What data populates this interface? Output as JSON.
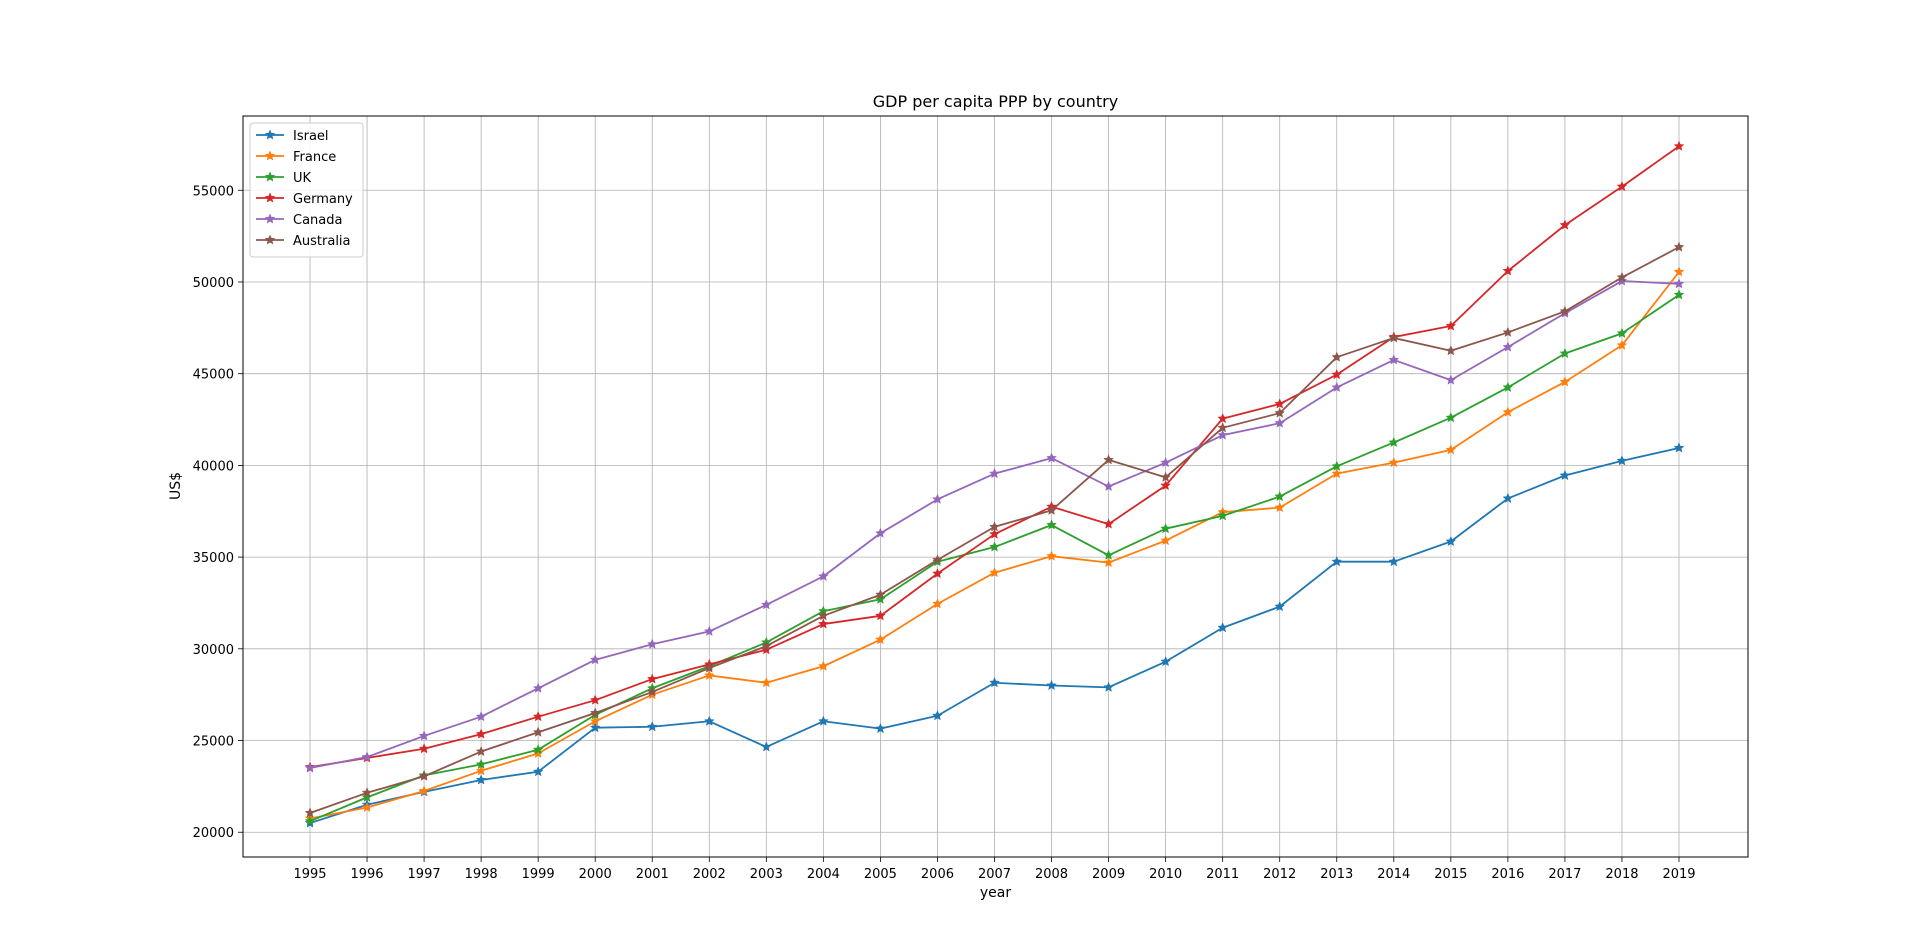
{
  "chart_data": {
    "type": "line",
    "title": "GDP per capita PPP by country",
    "xlabel": "year",
    "ylabel": "US$",
    "x": [
      "1995",
      "1996",
      "1997",
      "1998",
      "1999",
      "2000",
      "2001",
      "2002",
      "2003",
      "2004",
      "2005",
      "2006",
      "2007",
      "2008",
      "2009",
      "2010",
      "2011",
      "2012",
      "2013",
      "2014",
      "2015",
      "2016",
      "2017",
      "2018",
      "2019"
    ],
    "yticks": [
      20000,
      25000,
      30000,
      35000,
      40000,
      45000,
      50000,
      55000
    ],
    "ylim": [
      18650,
      59050
    ],
    "grid": true,
    "legend_position": "top-left",
    "marker": "star",
    "series": [
      {
        "name": "Israel",
        "color": "#1f77b4",
        "values": [
          20500,
          21500,
          22200,
          22850,
          23300,
          25700,
          25750,
          26050,
          24650,
          26050,
          25650,
          26350,
          28150,
          28000,
          27900,
          29300,
          31150,
          32300,
          34750,
          34750,
          35850,
          38200,
          39450,
          40250,
          40950
        ]
      },
      {
        "name": "France",
        "color": "#ff7f0e",
        "values": [
          20750,
          21350,
          22250,
          23350,
          24300,
          26050,
          27500,
          28550,
          28150,
          29050,
          30500,
          32450,
          34150,
          35050,
          34700,
          35900,
          37450,
          37700,
          39550,
          40150,
          40850,
          42900,
          44550,
          46550,
          50550
        ]
      },
      {
        "name": "UK",
        "color": "#2ca02c",
        "values": [
          20600,
          21900,
          23100,
          23700,
          24500,
          26400,
          27850,
          29050,
          30350,
          32050,
          32700,
          34750,
          35550,
          36750,
          35100,
          36550,
          37250,
          38300,
          39950,
          41250,
          42600,
          44250,
          46100,
          47200,
          49300
        ]
      },
      {
        "name": "Germany",
        "color": "#d62728",
        "values": [
          23550,
          24050,
          24550,
          25350,
          26300,
          27200,
          28350,
          29150,
          29950,
          31350,
          31800,
          34100,
          36250,
          37750,
          36800,
          38900,
          42550,
          43350,
          44950,
          47000,
          47600,
          50600,
          53100,
          55200,
          57400
        ]
      },
      {
        "name": "Canada",
        "color": "#9467bd",
        "values": [
          23500,
          24100,
          25250,
          26300,
          27850,
          29400,
          30250,
          30950,
          32400,
          33950,
          36300,
          38150,
          39550,
          40400,
          38850,
          40150,
          41650,
          42300,
          44250,
          45750,
          44650,
          46450,
          48300,
          50050,
          49900
        ]
      },
      {
        "name": "Australia",
        "color": "#8c564b",
        "values": [
          21050,
          22150,
          23050,
          24400,
          25450,
          26500,
          27650,
          28950,
          30150,
          31800,
          32950,
          34850,
          36650,
          37550,
          40300,
          39350,
          42050,
          42850,
          45900,
          46950,
          46250,
          47250,
          48400,
          50250,
          51900
        ]
      }
    ]
  }
}
